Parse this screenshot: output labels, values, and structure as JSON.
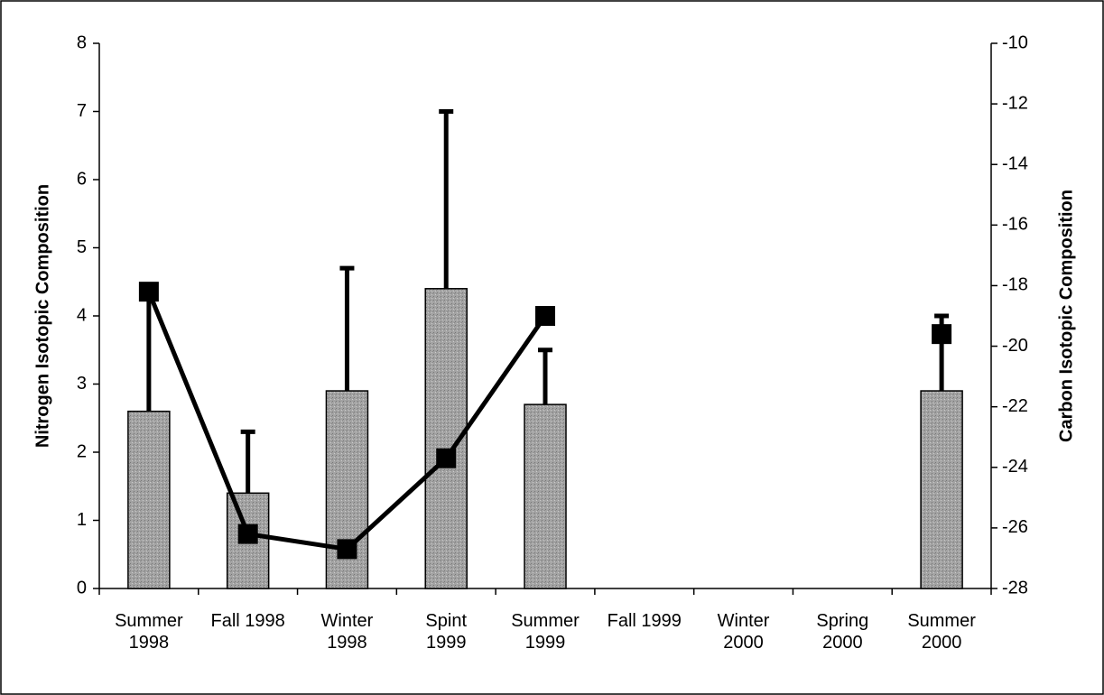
{
  "chart_data": {
    "type": "bar_line",
    "categories": [
      "Summer 1998",
      "Fall 1998",
      "Winter 1998",
      "Spint 1999",
      "Summer 1999",
      "Fall 1999",
      "Winter 2000",
      "Spring 2000",
      "Summer 2000"
    ],
    "ylabel": "Nitrogen Isotopic Composition",
    "y2label": "Carbon Isotopic Composition",
    "ylim": [
      0,
      8
    ],
    "yticks": [
      0,
      1,
      2,
      3,
      4,
      5,
      6,
      7,
      8
    ],
    "y2lim": [
      -28,
      -10
    ],
    "y2ticks": [
      -28,
      -26,
      -24,
      -22,
      -20,
      -18,
      -16,
      -14,
      -12,
      -10
    ],
    "series": [
      {
        "type": "bar",
        "color": "#a3a3a3",
        "values": [
          2.6,
          1.4,
          2.9,
          4.4,
          2.7,
          null,
          null,
          null,
          2.9
        ],
        "errors": [
          1.8,
          0.9,
          1.8,
          2.6,
          0.8,
          null,
          null,
          null,
          1.1
        ]
      },
      {
        "type": "line",
        "axis": "y2",
        "color": "#000000",
        "values": [
          -18.2,
          -26.2,
          -26.7,
          -23.7,
          -19.0,
          null,
          null,
          null,
          -19.6
        ]
      }
    ]
  }
}
